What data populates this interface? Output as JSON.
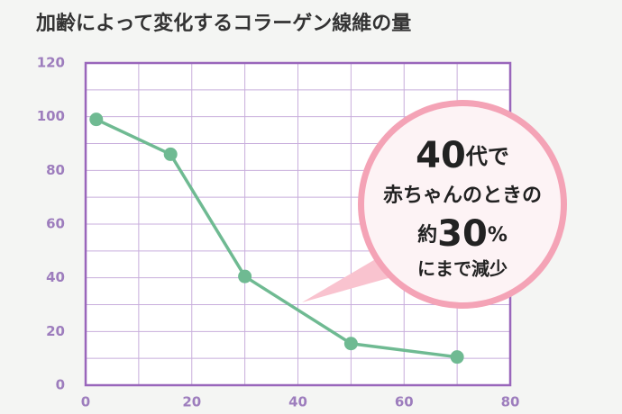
{
  "chart_data": {
    "type": "line",
    "title": "加齢によって変化するコラーゲン線維の量",
    "x": [
      2,
      16,
      30,
      50,
      70
    ],
    "series": [
      {
        "color": "#6fba92",
        "values": [
          99,
          86,
          40.5,
          15.5,
          10.5
        ]
      }
    ],
    "xlim": [
      0,
      80
    ],
    "xticks": [
      0,
      20,
      40,
      60,
      80
    ],
    "ylim": [
      0,
      120
    ],
    "yticks": [
      0,
      20,
      40,
      60,
      80,
      100,
      120
    ],
    "grid": true,
    "annotation": [
      "40",
      "代で",
      "赤ちゃんのときの",
      "約",
      "30",
      "%",
      "にまで減少"
    ]
  }
}
